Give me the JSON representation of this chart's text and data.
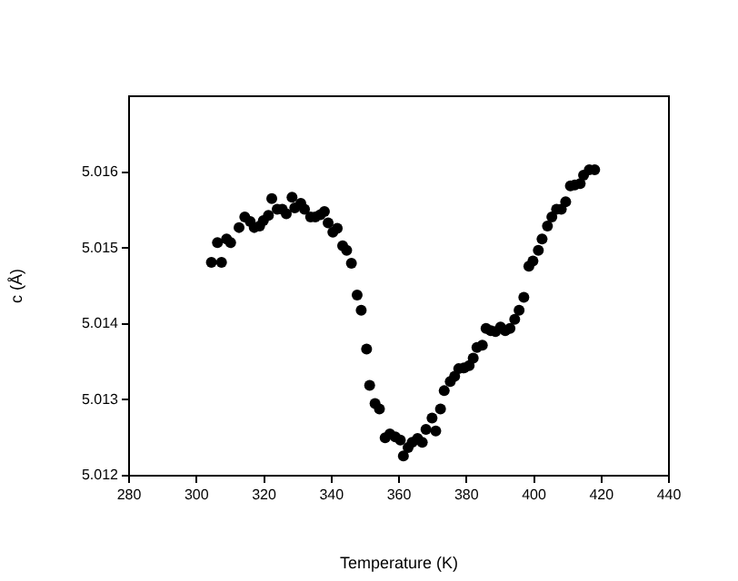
{
  "chart_data": {
    "type": "scatter",
    "xlabel": "Temperature (K)",
    "ylabel": "c (Å)",
    "xlim": [
      280,
      440
    ],
    "xticks": [
      280,
      300,
      320,
      340,
      360,
      380,
      400,
      420,
      440
    ],
    "ylim": [
      5.012,
      5.017
    ],
    "yticks": [
      5.012,
      5.013,
      5.014,
      5.015,
      5.016
    ],
    "grid": false,
    "legend": false,
    "marker": "circle",
    "series": [
      {
        "color": "#000000",
        "x": [
          304.4,
          307.4,
          306.2,
          308.9,
          310.1,
          312.6,
          314.3,
          315.9,
          317.1,
          318.7,
          319.8,
          321.3,
          322.3,
          323.9,
          325.4,
          326.6,
          328.3,
          329.1,
          330.9,
          332.0,
          333.8,
          335.2,
          336.7,
          337.9,
          339.0,
          340.4,
          341.7,
          343.3,
          344.5,
          345.9,
          347.6,
          348.8,
          350.4,
          351.3,
          352.9,
          354.2,
          355.9,
          357.3,
          358.9,
          360.4,
          361.3,
          362.7,
          363.9,
          365.5,
          366.9,
          368.0,
          369.8,
          370.9,
          372.3,
          373.4,
          375.2,
          376.5,
          377.7,
          379.3,
          380.8,
          382.0,
          383.1,
          384.7,
          385.8,
          387.2,
          388.6,
          390.1,
          391.5,
          392.9,
          394.3,
          395.6,
          397.0,
          398.5,
          399.7,
          401.3,
          402.4,
          404.0,
          405.3,
          406.7,
          408.1,
          409.4,
          410.8,
          412.1,
          413.7,
          414.7,
          416.4,
          418.0
        ],
        "values": [
          5.01481,
          5.01481,
          5.01507,
          5.01512,
          5.01507,
          5.01527,
          5.01541,
          5.01535,
          5.01527,
          5.01529,
          5.01536,
          5.01543,
          5.01565,
          5.01551,
          5.01551,
          5.01545,
          5.01567,
          5.01553,
          5.01559,
          5.01551,
          5.01541,
          5.01541,
          5.01544,
          5.01548,
          5.01533,
          5.01521,
          5.01526,
          5.01503,
          5.01497,
          5.0148,
          5.01438,
          5.01418,
          5.01367,
          5.01319,
          5.01295,
          5.01288,
          5.0125,
          5.01255,
          5.01251,
          5.01247,
          5.01226,
          5.01237,
          5.01244,
          5.01249,
          5.01244,
          5.01261,
          5.01276,
          5.01259,
          5.01288,
          5.01312,
          5.01324,
          5.01331,
          5.01341,
          5.01342,
          5.01345,
          5.01355,
          5.01369,
          5.01372,
          5.01394,
          5.01391,
          5.0139,
          5.01396,
          5.01391,
          5.01394,
          5.01406,
          5.01418,
          5.01435,
          5.01476,
          5.01483,
          5.01497,
          5.01512,
          5.01529,
          5.01541,
          5.01551,
          5.01551,
          5.01561,
          5.01582,
          5.01583,
          5.01585,
          5.01596,
          5.01603,
          5.01603
        ]
      }
    ]
  }
}
